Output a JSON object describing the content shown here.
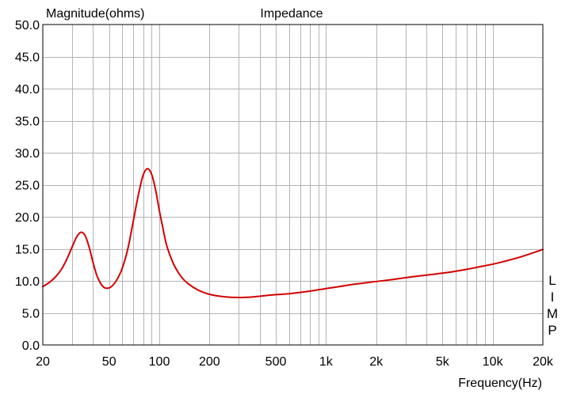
{
  "chart_data": {
    "type": "line",
    "title": "Impedance",
    "ylabel": "Magnitude(ohms)",
    "xlabel": "Frequency(Hz)",
    "side_label": [
      "L",
      "I",
      "M",
      "P"
    ],
    "x_scale": "log",
    "xlim": [
      20,
      20000
    ],
    "ylim": [
      0,
      50
    ],
    "grid": true,
    "x_ticks": [
      {
        "value": 20,
        "label": "20"
      },
      {
        "value": 50,
        "label": "50"
      },
      {
        "value": 100,
        "label": "100"
      },
      {
        "value": 200,
        "label": "200"
      },
      {
        "value": 500,
        "label": "500"
      },
      {
        "value": 1000,
        "label": "1k"
      },
      {
        "value": 2000,
        "label": "2k"
      },
      {
        "value": 5000,
        "label": "5k"
      },
      {
        "value": 10000,
        "label": "10k"
      },
      {
        "value": 20000,
        "label": "20k"
      }
    ],
    "y_ticks": [
      {
        "value": 0,
        "label": "0.0"
      },
      {
        "value": 5,
        "label": "5.0"
      },
      {
        "value": 10,
        "label": "10.0"
      },
      {
        "value": 15,
        "label": "15.0"
      },
      {
        "value": 20,
        "label": "20.0"
      },
      {
        "value": 25,
        "label": "25.0"
      },
      {
        "value": 30,
        "label": "30.0"
      },
      {
        "value": 35,
        "label": "35.0"
      },
      {
        "value": 40,
        "label": "40.0"
      },
      {
        "value": 45,
        "label": "45.0"
      },
      {
        "value": 50,
        "label": "50.0"
      }
    ],
    "series": [
      {
        "color": "#d40000",
        "points": [
          [
            20,
            9.1
          ],
          [
            22,
            9.8
          ],
          [
            24,
            10.7
          ],
          [
            26,
            11.9
          ],
          [
            28,
            13.5
          ],
          [
            30,
            15.3
          ],
          [
            32,
            16.9
          ],
          [
            34,
            17.6
          ],
          [
            36,
            17.0
          ],
          [
            38,
            15.2
          ],
          [
            40,
            12.9
          ],
          [
            42,
            11.0
          ],
          [
            44,
            9.8
          ],
          [
            46,
            9.1
          ],
          [
            48,
            8.85
          ],
          [
            50,
            8.9
          ],
          [
            53,
            9.4
          ],
          [
            56,
            10.3
          ],
          [
            60,
            12.0
          ],
          [
            65,
            15.2
          ],
          [
            70,
            19.5
          ],
          [
            75,
            23.5
          ],
          [
            80,
            26.5
          ],
          [
            85,
            27.5
          ],
          [
            90,
            26.6
          ],
          [
            95,
            24.2
          ],
          [
            100,
            21.0
          ],
          [
            105,
            18.3
          ],
          [
            110,
            15.8
          ],
          [
            120,
            13.0
          ],
          [
            130,
            11.3
          ],
          [
            140,
            10.2
          ],
          [
            150,
            9.5
          ],
          [
            170,
            8.6
          ],
          [
            200,
            7.9
          ],
          [
            250,
            7.5
          ],
          [
            300,
            7.4
          ],
          [
            350,
            7.45
          ],
          [
            400,
            7.6
          ],
          [
            450,
            7.75
          ],
          [
            500,
            7.85
          ],
          [
            600,
            8.0
          ],
          [
            700,
            8.2
          ],
          [
            800,
            8.4
          ],
          [
            1000,
            8.8
          ],
          [
            1200,
            9.1
          ],
          [
            1500,
            9.5
          ],
          [
            2000,
            9.9
          ],
          [
            2500,
            10.2
          ],
          [
            3000,
            10.5
          ],
          [
            4000,
            10.9
          ],
          [
            5000,
            11.2
          ],
          [
            6000,
            11.5
          ],
          [
            7000,
            11.8
          ],
          [
            8000,
            12.1
          ],
          [
            10000,
            12.6
          ],
          [
            12000,
            13.1
          ],
          [
            15000,
            13.8
          ],
          [
            20000,
            14.9
          ]
        ]
      }
    ]
  },
  "style": {
    "background": "#ffffff",
    "grid_color": "#b4b4b4",
    "frame_color": "#000000",
    "text_color": "#000000"
  }
}
